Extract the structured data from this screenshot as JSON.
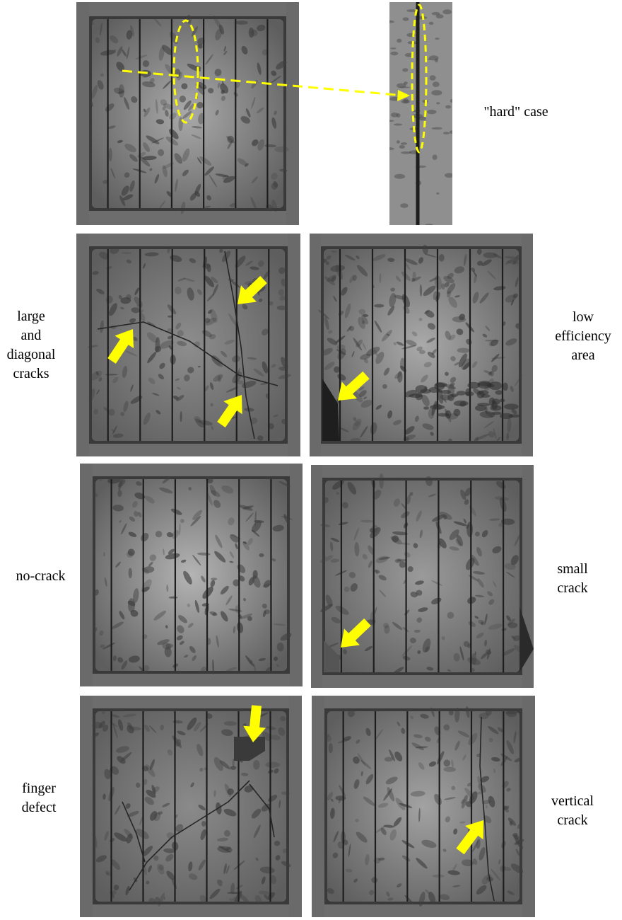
{
  "labels": {
    "hard_case": "\"hard\" case",
    "large_diagonal": [
      "large",
      "and",
      "diagonal",
      "cracks"
    ],
    "low_efficiency": [
      "low",
      "efficiency",
      "area"
    ],
    "no_crack": "no-crack",
    "small_crack": [
      "small",
      "crack"
    ],
    "finger_defect": [
      "finger",
      "defect"
    ],
    "vertical_crack": [
      "vertical",
      "crack"
    ]
  },
  "colors": {
    "annotation": "#ffff00",
    "cell_background": "#8e8e8e",
    "frame": "#3a3a3a",
    "busbar": "#1e1e1e"
  }
}
